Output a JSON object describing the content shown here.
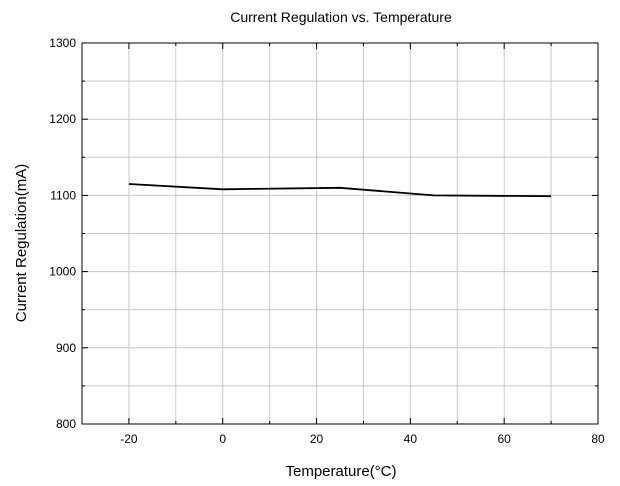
{
  "chart_data": {
    "type": "line",
    "title": "Current Regulation vs. Temperature",
    "xlabel": "Temperature(°C)",
    "ylabel": "Current Regulation(mA)",
    "xlim": [
      -30,
      80
    ],
    "ylim": [
      800,
      1300
    ],
    "x_major_ticks": [
      -20,
      0,
      20,
      40,
      60,
      80
    ],
    "x_minor_ticks": [
      -30,
      -10,
      10,
      30,
      50,
      70
    ],
    "y_major_ticks": [
      800,
      900,
      1000,
      1100,
      1200,
      1300
    ],
    "y_minor_ticks": [
      850,
      950,
      1050,
      1150,
      1250
    ],
    "grid": true,
    "legend": "none",
    "series": [
      {
        "color": "#000000",
        "x": [
          -20,
          0,
          25,
          45,
          70
        ],
        "y": [
          1115,
          1108,
          1110,
          1100,
          1099
        ]
      }
    ]
  }
}
